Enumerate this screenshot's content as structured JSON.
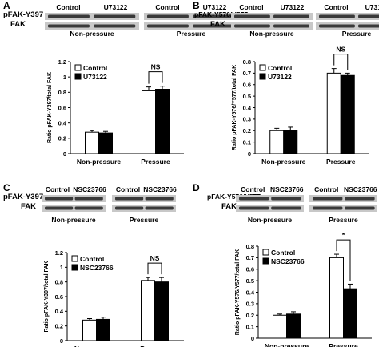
{
  "panels": [
    {
      "letter": "A",
      "blot": {
        "row_labels": [
          "pFAK-Y397",
          "FAK"
        ],
        "lane_labels": [
          "Control",
          "U73122",
          "Control",
          "U73122"
        ],
        "group_labels": [
          "Non-pressure",
          "Pressure"
        ]
      },
      "chart_data": {
        "type": "bar",
        "categories": [
          "Non-pressure",
          "Pressure"
        ],
        "series": [
          {
            "name": "Control",
            "values": [
              0.28,
              0.82
            ],
            "errors": [
              0.02,
              0.05
            ]
          },
          {
            "name": "U73122",
            "values": [
              0.27,
              0.84
            ],
            "errors": [
              0.02,
              0.04
            ]
          }
        ],
        "ylabel": "Ratio pFAK-Y397/total FAK",
        "ylim": [
          0,
          1.2
        ],
        "yticks": [
          "0",
          "0.2",
          "0.4",
          "0.6",
          "0.8",
          "1",
          "1.2"
        ],
        "significance": "NS",
        "legend_position": "top-left"
      }
    },
    {
      "letter": "B",
      "blot": {
        "row_labels": [
          "pFAK-Y576/Y577",
          "FAK"
        ],
        "lane_labels": [
          "Control",
          "U73122",
          "Control",
          "U73122"
        ],
        "group_labels": [
          "Non-pressure",
          "Pressure"
        ]
      },
      "chart_data": {
        "type": "bar",
        "categories": [
          "Non-pressure",
          "Pressure"
        ],
        "series": [
          {
            "name": "Control",
            "values": [
              0.2,
              0.7
            ],
            "errors": [
              0.02,
              0.04
            ]
          },
          {
            "name": "U73122",
            "values": [
              0.2,
              0.68
            ],
            "errors": [
              0.03,
              0.02
            ]
          }
        ],
        "ylabel": "Ratio pFAK-Y576/Y577/total FAK",
        "ylim": [
          0,
          0.8
        ],
        "yticks": [
          "0",
          "0.1",
          "0.2",
          "0.3",
          "0.4",
          "0.5",
          "0.6",
          "0.7",
          "0.8"
        ],
        "significance": "NS",
        "legend_position": "top-left"
      }
    },
    {
      "letter": "C",
      "blot": {
        "row_labels": [
          "pFAK-Y397",
          "FAK"
        ],
        "lane_labels": [
          "Control",
          "NSC23766",
          "Control",
          "NSC23766"
        ],
        "group_labels": [
          "Non-pressure",
          "Pressure"
        ]
      },
      "chart_data": {
        "type": "bar",
        "categories": [
          "Non-pressure",
          "Pressure"
        ],
        "series": [
          {
            "name": "Control",
            "values": [
              0.28,
              0.82
            ],
            "errors": [
              0.02,
              0.04
            ]
          },
          {
            "name": "NSC23766",
            "values": [
              0.29,
              0.8
            ],
            "errors": [
              0.03,
              0.06
            ]
          }
        ],
        "ylabel": "Ratio pFAK-Y397/total FAK",
        "ylim": [
          0,
          1.2
        ],
        "yticks": [
          "0",
          "0.2",
          "0.4",
          "0.6",
          "0.8",
          "1",
          "1.2"
        ],
        "significance": "NS",
        "legend_position": "top-left"
      }
    },
    {
      "letter": "D",
      "blot": {
        "row_labels": [
          "pFAK-Y576/Y577",
          "FAK"
        ],
        "lane_labels": [
          "Control",
          "NSC23766",
          "Control",
          "NSC23766"
        ],
        "group_labels": [
          "Non-pressure",
          "Pressure"
        ]
      },
      "chart_data": {
        "type": "bar",
        "categories": [
          "Non-pressure",
          "Pressure"
        ],
        "series": [
          {
            "name": "Control",
            "values": [
              0.2,
              0.7
            ],
            "errors": [
              0.01,
              0.03
            ]
          },
          {
            "name": "NSC23766",
            "values": [
              0.21,
              0.43
            ],
            "errors": [
              0.02,
              0.04
            ]
          }
        ],
        "ylabel": "Ratio pFAK-Y576/Y577/total FAK",
        "ylim": [
          0,
          0.8
        ],
        "yticks": [
          "0",
          "0.1",
          "0.2",
          "0.3",
          "0.4",
          "0.5",
          "0.6",
          "0.7",
          "0.8"
        ],
        "significance": "*",
        "legend_position": "top-left"
      }
    }
  ],
  "colors": {
    "control": "#ffffff",
    "treatment": "#000000",
    "band_dark": "#3a3a3a",
    "band_bg": "#c8c8c8"
  }
}
